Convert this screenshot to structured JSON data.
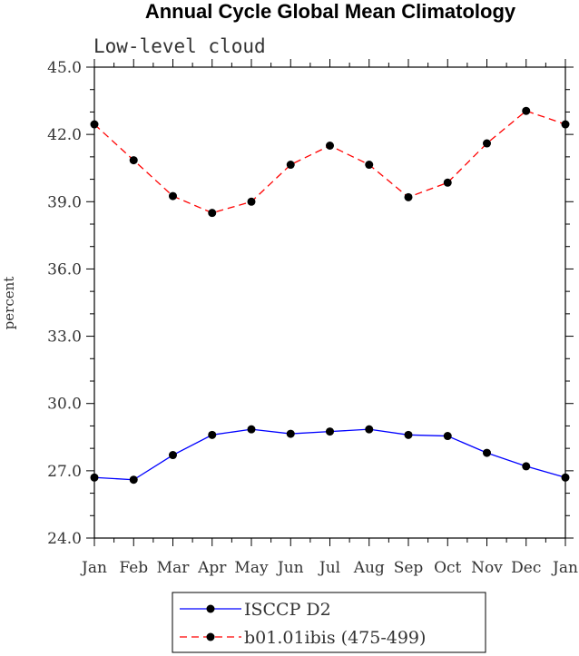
{
  "chart_data": {
    "type": "line",
    "title": "Annual Cycle Global Mean Climatology",
    "subtitle": "Low-level cloud",
    "ylabel": "percent",
    "xlabel": "",
    "ylim": [
      24.0,
      45.0
    ],
    "yticks": [
      "24.0",
      "27.0",
      "30.0",
      "33.0",
      "36.0",
      "39.0",
      "42.0",
      "45.0"
    ],
    "categories": [
      "Jan",
      "Feb",
      "Mar",
      "Apr",
      "May",
      "Jun",
      "Jul",
      "Aug",
      "Sep",
      "Oct",
      "Nov",
      "Dec",
      "Jan"
    ],
    "series": [
      {
        "name": "ISCCP D2",
        "color": "#0000ff",
        "dash": "solid",
        "values": [
          26.7,
          26.6,
          27.7,
          28.6,
          28.85,
          28.65,
          28.75,
          28.85,
          28.6,
          28.55,
          27.8,
          27.2,
          26.7
        ]
      },
      {
        "name": "b01.01ibis (475-499)",
        "color": "#ff0000",
        "dash": "dashed",
        "values": [
          42.45,
          40.85,
          39.25,
          38.5,
          39.0,
          40.65,
          41.5,
          40.65,
          39.2,
          39.85,
          41.6,
          43.05,
          42.45
        ]
      }
    ],
    "legend_position": "bottom"
  }
}
